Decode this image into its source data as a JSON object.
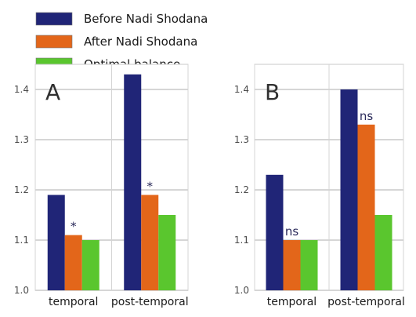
{
  "legend": [
    {
      "label": "Before Nadi Shodana",
      "color": "#202577"
    },
    {
      "label": "After Nadi Shodana",
      "color": "#e3661a"
    },
    {
      "label": "Optimal balance",
      "color": "#5ac62e"
    }
  ],
  "chart_data": [
    {
      "type": "bar",
      "panel_label": "A",
      "categories": [
        "temporal",
        "post-temporal"
      ],
      "series": [
        {
          "name": "Before Nadi Shodana",
          "values": [
            1.19,
            1.43
          ]
        },
        {
          "name": "After Nadi Shodana",
          "values": [
            1.11,
            1.19
          ]
        },
        {
          "name": "Optimal balance",
          "values": [
            1.1,
            1.15
          ]
        }
      ],
      "annotations": [
        {
          "category": "temporal",
          "series": "After Nadi Shodana",
          "text": "*"
        },
        {
          "category": "post-temporal",
          "series": "After Nadi Shodana",
          "text": "*"
        }
      ],
      "ylim": [
        1.0,
        1.45
      ],
      "yticks": [
        "1.0",
        "1.1",
        "1.2",
        "1.3",
        "1.4"
      ],
      "grid": true
    },
    {
      "type": "bar",
      "panel_label": "B",
      "categories": [
        "temporal",
        "post-temporal"
      ],
      "series": [
        {
          "name": "Before Nadi Shodana",
          "values": [
            1.23,
            1.4
          ]
        },
        {
          "name": "After Nadi Shodana",
          "values": [
            1.1,
            1.33
          ]
        },
        {
          "name": "Optimal balance",
          "values": [
            1.1,
            1.15
          ]
        }
      ],
      "annotations": [
        {
          "category": "temporal",
          "series": "After Nadi Shodana",
          "text": "ns"
        },
        {
          "category": "post-temporal",
          "series": "After Nadi Shodana",
          "text": "ns"
        }
      ],
      "ylim": [
        1.0,
        1.45
      ],
      "yticks": [
        "1.0",
        "1.1",
        "1.2",
        "1.3",
        "1.4"
      ],
      "grid": true
    }
  ]
}
